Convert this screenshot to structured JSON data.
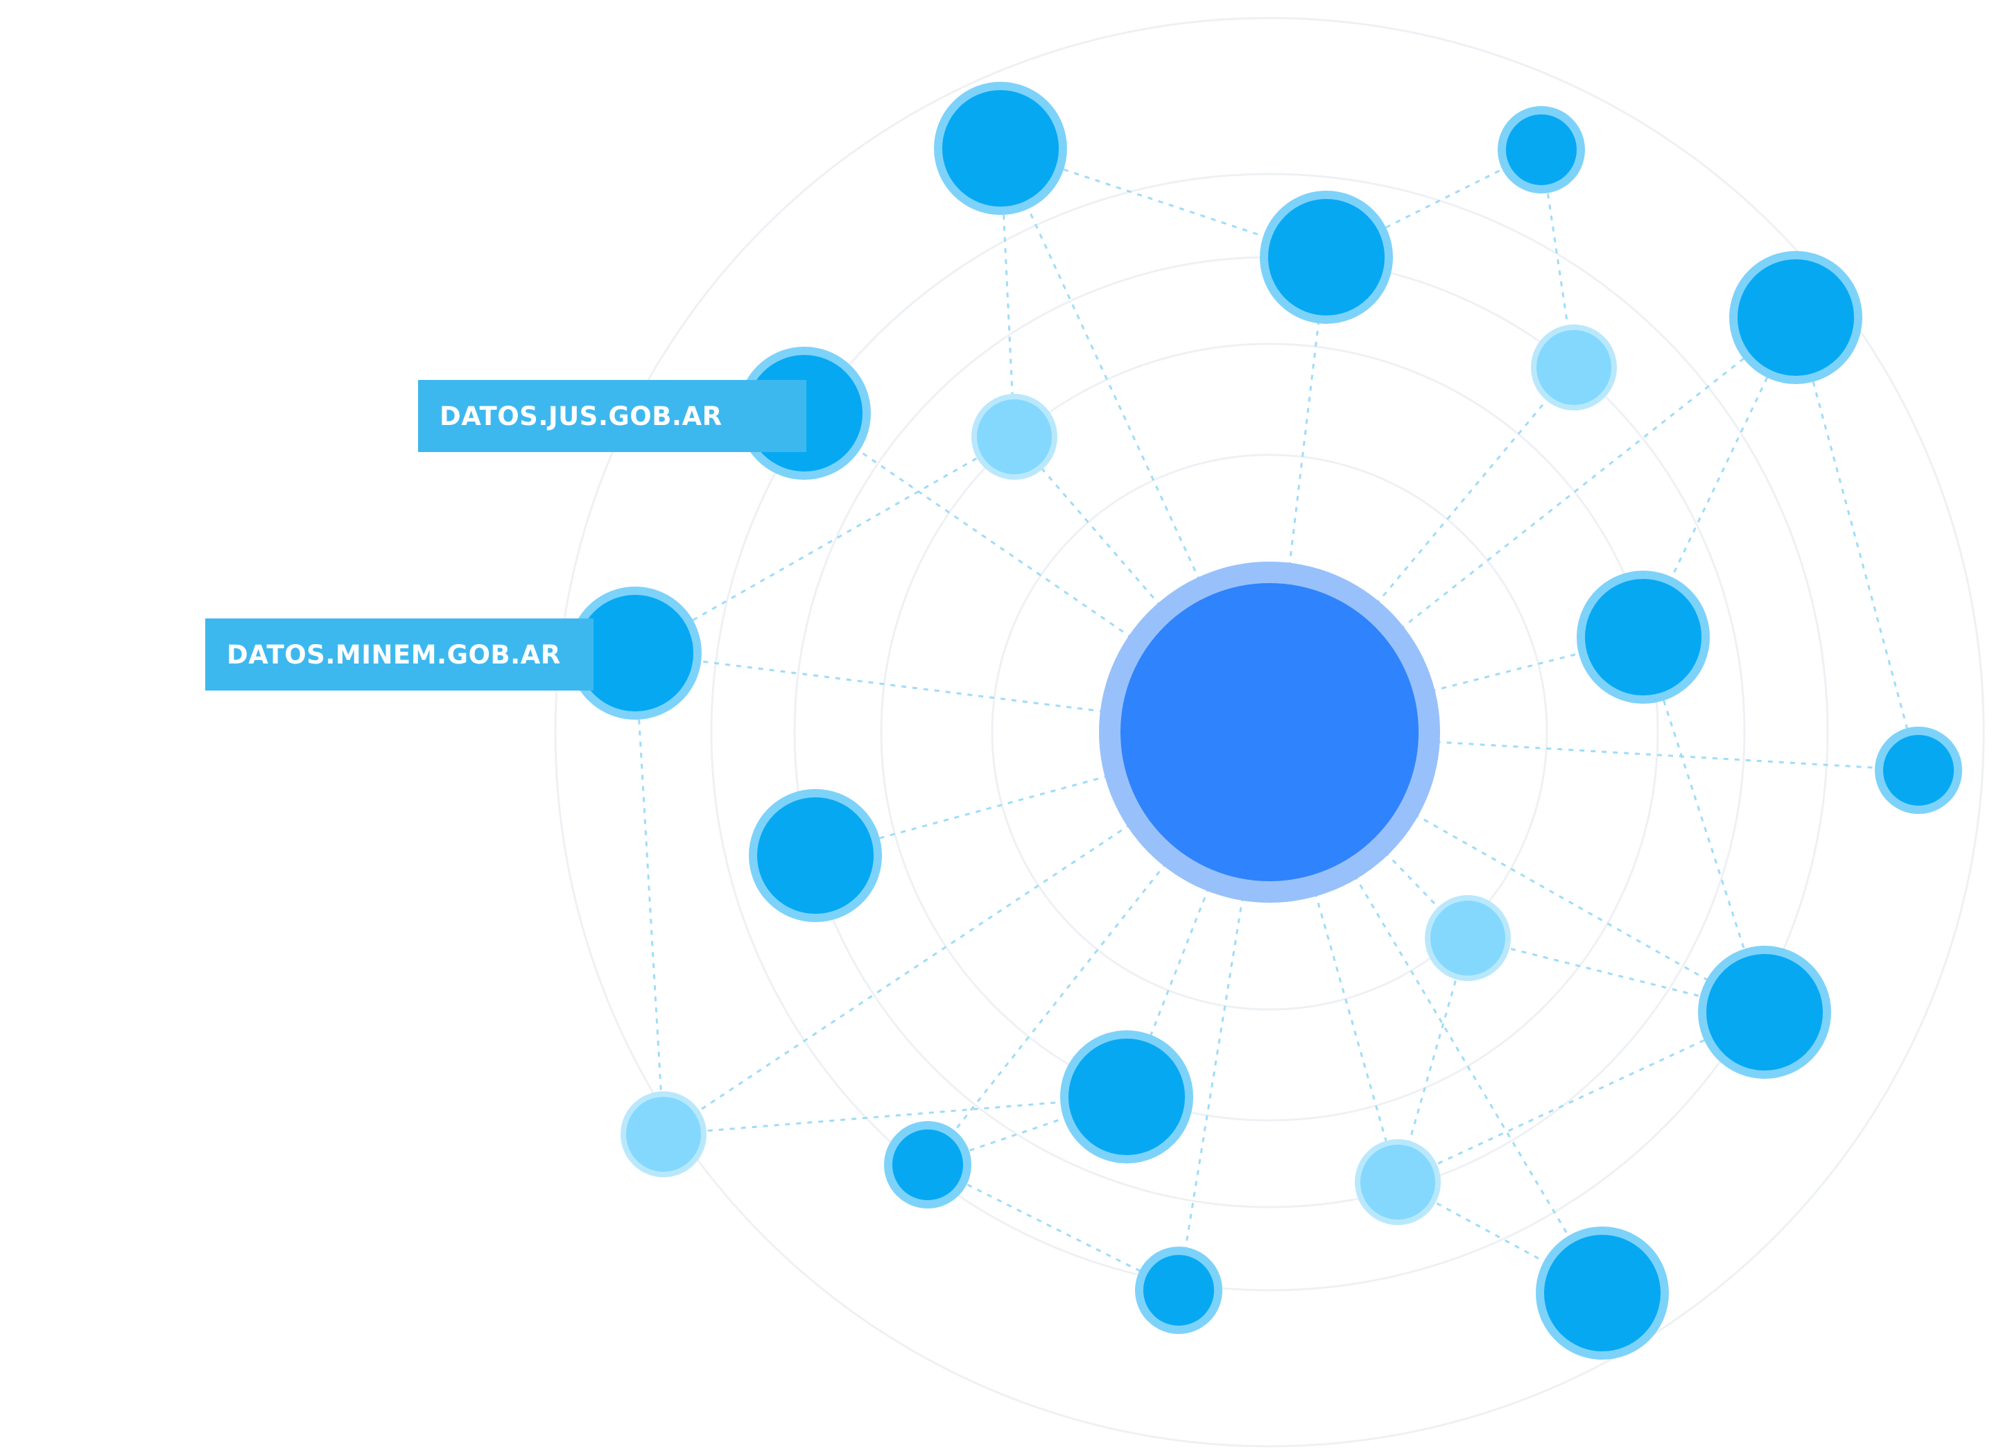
{
  "colors": {
    "background": "#ffffff",
    "ring_stroke": "#eef1f4",
    "edge_stroke": "#9fdcf7",
    "hub_fill": "#2f83fc",
    "hub_halo": "#98c1fb",
    "node_fill": "#06a8f2",
    "node_ring": "#7dd2fa",
    "node_light_fill": "#84d8fd",
    "node_light_ring": "#b9e8fd",
    "label_bg": "#3db8ef",
    "label_text": "#ffffff"
  },
  "hub": {
    "name": "central-hub",
    "icon": "hub-circle"
  },
  "nodes": [
    {
      "id": "n1",
      "variant": "dark"
    },
    {
      "id": "n2",
      "variant": "dark"
    },
    {
      "id": "n3",
      "variant": "dark"
    },
    {
      "id": "n4",
      "variant": "dark"
    },
    {
      "id": "n5",
      "variant": "dark",
      "label_key": "jus"
    },
    {
      "id": "n6",
      "variant": "light"
    },
    {
      "id": "n7",
      "variant": "light"
    },
    {
      "id": "n8",
      "variant": "dark",
      "label_key": "minem"
    },
    {
      "id": "n9",
      "variant": "dark"
    },
    {
      "id": "n10",
      "variant": "dark"
    },
    {
      "id": "n11",
      "variant": "dark"
    },
    {
      "id": "n12",
      "variant": "light"
    },
    {
      "id": "n13",
      "variant": "dark"
    },
    {
      "id": "n14",
      "variant": "light"
    },
    {
      "id": "n15",
      "variant": "dark"
    },
    {
      "id": "n16",
      "variant": "dark"
    },
    {
      "id": "n17",
      "variant": "light"
    },
    {
      "id": "n18",
      "variant": "dark"
    },
    {
      "id": "n19",
      "variant": "dark"
    }
  ],
  "edges": [
    [
      "hub",
      "n1"
    ],
    [
      "hub",
      "n2"
    ],
    [
      "hub",
      "n5"
    ],
    [
      "hub",
      "n6"
    ],
    [
      "hub",
      "n7"
    ],
    [
      "hub",
      "n8"
    ],
    [
      "hub",
      "n9"
    ],
    [
      "hub",
      "n10"
    ],
    [
      "hub",
      "n11"
    ],
    [
      "hub",
      "n12"
    ],
    [
      "hub",
      "n13"
    ],
    [
      "hub",
      "n14"
    ],
    [
      "hub",
      "n15"
    ],
    [
      "hub",
      "n16"
    ],
    [
      "hub",
      "n17"
    ],
    [
      "hub",
      "n18"
    ],
    [
      "hub",
      "n4"
    ],
    [
      "hub",
      "n19"
    ],
    [
      "n1",
      "n2"
    ],
    [
      "n1",
      "n6"
    ],
    [
      "n2",
      "n3"
    ],
    [
      "n3",
      "n7"
    ],
    [
      "n4",
      "n10"
    ],
    [
      "n4",
      "n11"
    ],
    [
      "n8",
      "n6"
    ],
    [
      "n8",
      "n17"
    ],
    [
      "n17",
      "n13"
    ],
    [
      "n15",
      "n13"
    ],
    [
      "n15",
      "n16"
    ],
    [
      "n14",
      "n19"
    ],
    [
      "n14",
      "n18"
    ],
    [
      "n12",
      "n18"
    ],
    [
      "n12",
      "n14"
    ],
    [
      "n10",
      "n18"
    ]
  ],
  "labels": {
    "jus": "DATOS.JUS.GOB.AR",
    "minem": "DATOS.MINEM.GOB.AR"
  }
}
